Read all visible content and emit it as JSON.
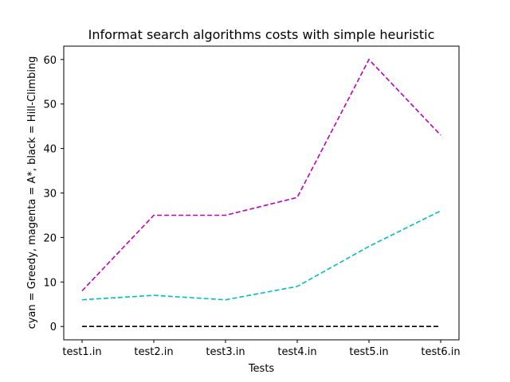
{
  "chart_data": {
    "type": "line",
    "title": "Informat search algorithms costs with simple heuristic",
    "xlabel": "Tests",
    "ylabel": "cyan = Greedy, magenta = A*, black = Hill-Climbing",
    "categories": [
      "test1.in",
      "test2.in",
      "test3.in",
      "test4.in",
      "test5.in",
      "test6.in"
    ],
    "ylim": [
      -3,
      63
    ],
    "yticks": [
      0,
      10,
      20,
      30,
      40,
      50,
      60
    ],
    "grid": false,
    "line_style": "dashed",
    "series": [
      {
        "values": [
          6,
          7,
          6,
          9,
          18,
          26
        ],
        "color": "#00bfbf"
      },
      {
        "values": [
          8,
          25,
          25,
          29,
          60,
          43
        ],
        "color": "#bf00bf"
      },
      {
        "values": [
          0,
          0,
          0,
          0,
          0,
          0
        ],
        "color": "#000000"
      }
    ]
  }
}
